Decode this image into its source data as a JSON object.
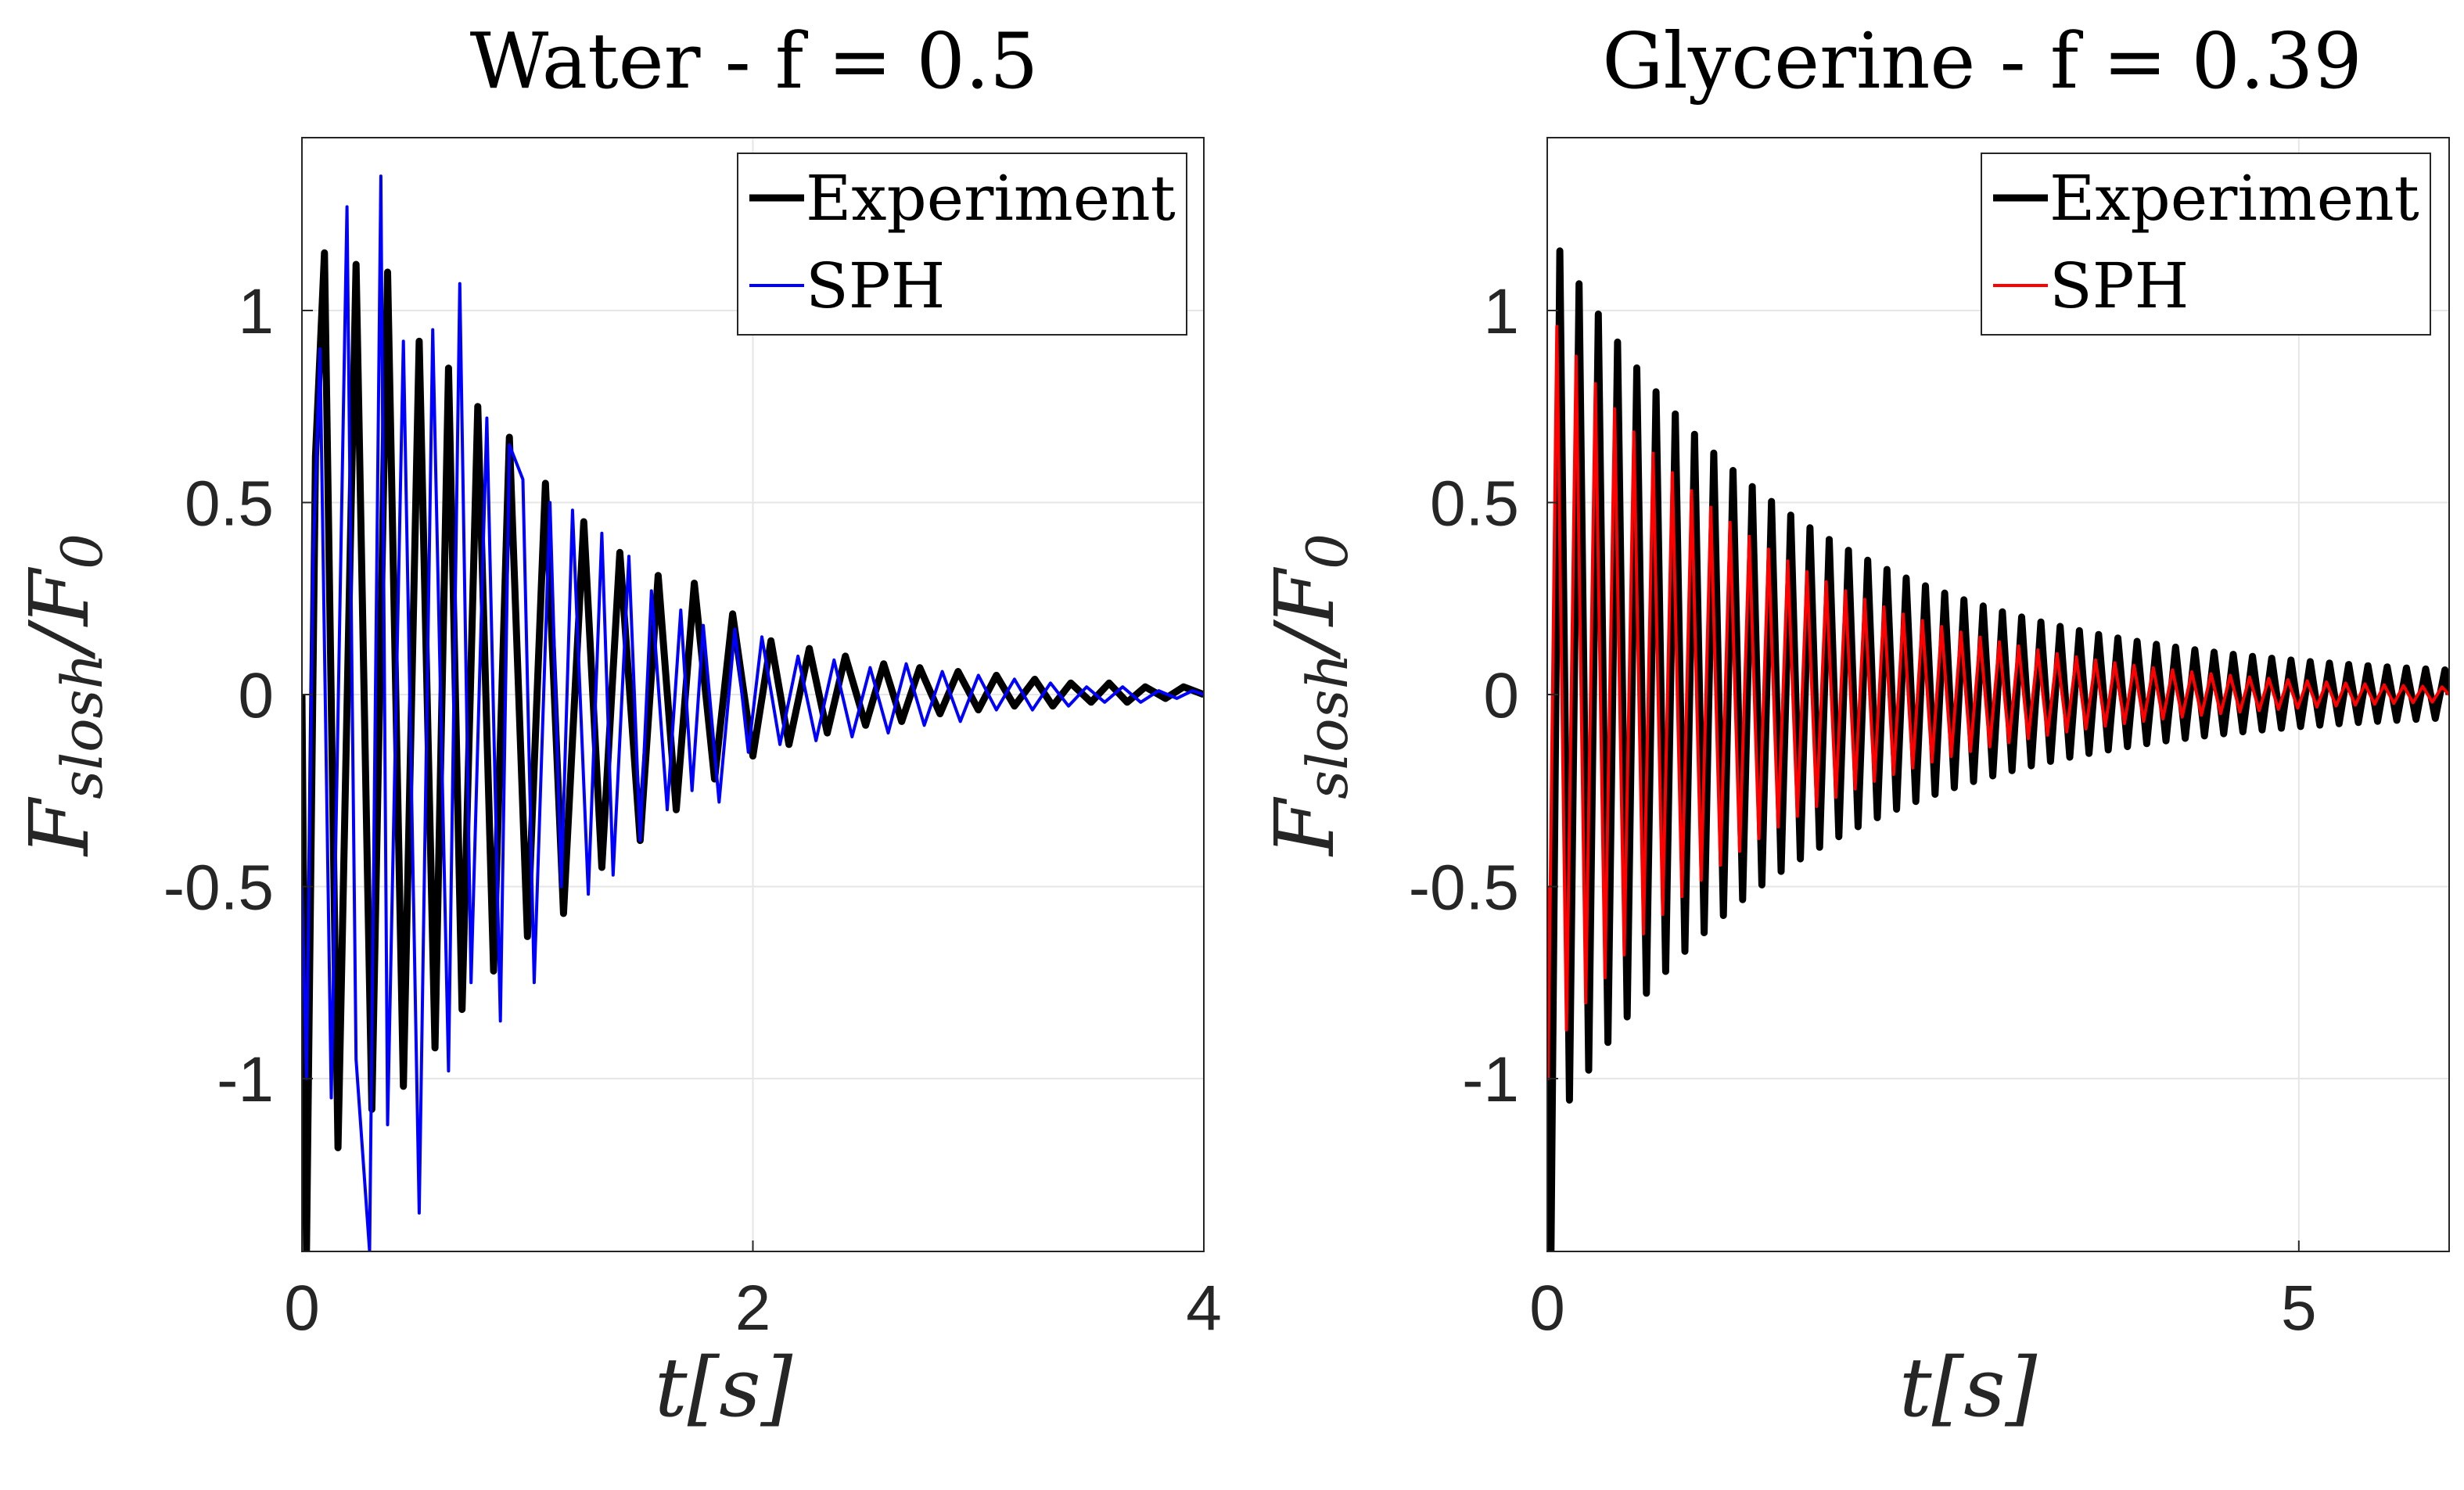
{
  "chart_data": [
    {
      "type": "line",
      "title": "Water - f = 0.5",
      "xlabel": "t[s]",
      "ylabel": "F_slosh/F_0",
      "ylabel_main": "F",
      "ylabel_sub": "slosh",
      "ylabel_div": "/",
      "ylabel_main2": "F",
      "ylabel_sub2": "0",
      "xlim": [
        0,
        4
      ],
      "ylim": [
        -1.45,
        1.45
      ],
      "xticks": [
        0,
        2,
        4
      ],
      "xtick_labels": [
        "0",
        "2",
        "4"
      ],
      "yticks": [
        -1,
        -0.5,
        0,
        0.5,
        1
      ],
      "ytick_labels": [
        "-1",
        "-0.5",
        "0",
        "0.5",
        "1"
      ],
      "grid": true,
      "legend_position": "top-right",
      "series": [
        {
          "name": "Experiment",
          "color": "#000000",
          "style": "thick",
          "x": [
            0.0,
            0.02,
            0.06,
            0.1,
            0.16,
            0.24,
            0.31,
            0.38,
            0.45,
            0.52,
            0.59,
            0.65,
            0.71,
            0.78,
            0.85,
            0.92,
            1.0,
            1.08,
            1.16,
            1.25,
            1.33,
            1.41,
            1.5,
            1.58,
            1.66,
            1.74,
            1.83,
            1.91,
            2.0,
            2.08,
            2.16,
            2.25,
            2.33,
            2.41,
            2.5,
            2.58,
            2.66,
            2.74,
            2.83,
            2.91,
            3.0,
            3.08,
            3.16,
            3.25,
            3.33,
            3.41,
            3.5,
            3.58,
            3.66,
            3.74,
            3.83,
            3.91,
            4.0
          ],
          "y": [
            0.0,
            -1.45,
            0.62,
            1.15,
            -1.18,
            1.12,
            -1.08,
            1.1,
            -1.02,
            0.92,
            -0.92,
            0.85,
            -0.82,
            0.75,
            -0.72,
            0.67,
            -0.63,
            0.55,
            -0.57,
            0.45,
            -0.45,
            0.37,
            -0.38,
            0.31,
            -0.3,
            0.29,
            -0.22,
            0.21,
            -0.16,
            0.14,
            -0.13,
            0.12,
            -0.1,
            0.1,
            -0.08,
            0.08,
            -0.07,
            0.07,
            -0.05,
            0.06,
            -0.04,
            0.05,
            -0.03,
            0.04,
            -0.03,
            0.03,
            -0.02,
            0.03,
            -0.02,
            0.02,
            -0.01,
            0.02,
            0.0
          ]
        },
        {
          "name": "SPH",
          "color": "#0000ff",
          "style": "thin",
          "x": [
            0.0,
            0.02,
            0.05,
            0.08,
            0.13,
            0.2,
            0.24,
            0.3,
            0.35,
            0.38,
            0.45,
            0.52,
            0.58,
            0.65,
            0.7,
            0.75,
            0.82,
            0.88,
            0.92,
            0.98,
            1.03,
            1.1,
            1.15,
            1.2,
            1.27,
            1.33,
            1.38,
            1.45,
            1.5,
            1.55,
            1.62,
            1.68,
            1.73,
            1.78,
            1.85,
            1.92,
            1.98,
            2.04,
            2.12,
            2.2,
            2.28,
            2.36,
            2.44,
            2.52,
            2.6,
            2.68,
            2.76,
            2.84,
            2.92,
            3.0,
            3.08,
            3.16,
            3.24,
            3.32,
            3.4,
            3.48,
            3.56,
            3.64,
            3.72,
            3.8,
            3.88,
            3.95,
            4.0
          ],
          "y": [
            -0.5,
            -1.0,
            0.35,
            0.9,
            -1.05,
            1.27,
            -0.95,
            -1.45,
            1.35,
            -1.12,
            0.92,
            -1.35,
            0.95,
            -0.98,
            1.07,
            -0.75,
            0.72,
            -0.85,
            0.65,
            0.56,
            -0.75,
            0.5,
            -0.5,
            0.48,
            -0.52,
            0.42,
            -0.47,
            0.36,
            -0.38,
            0.27,
            -0.3,
            0.22,
            -0.25,
            0.18,
            -0.28,
            0.17,
            -0.15,
            0.15,
            -0.13,
            0.1,
            -0.12,
            0.09,
            -0.11,
            0.07,
            -0.1,
            0.08,
            -0.08,
            0.06,
            -0.07,
            0.05,
            -0.04,
            0.04,
            -0.04,
            0.03,
            -0.03,
            0.02,
            -0.02,
            0.02,
            -0.02,
            0.01,
            -0.01,
            0.01,
            0.0
          ]
        }
      ]
    },
    {
      "type": "line",
      "title": "Glycerine - f = 0.39",
      "xlabel": "t[s]",
      "ylabel": "F_slosh/F_0",
      "ylabel_main": "F",
      "ylabel_sub": "slosh",
      "ylabel_div": "/",
      "ylabel_main2": "F",
      "ylabel_sub2": "0",
      "xlim": [
        0,
        6
      ],
      "ylim": [
        -1.45,
        1.45
      ],
      "xticks": [
        0,
        5
      ],
      "xtick_labels": [
        "0",
        "5"
      ],
      "yticks": [
        -1,
        -0.5,
        0,
        0.5,
        1
      ],
      "ytick_labels": [
        "-1",
        "-0.5",
        "0",
        "0.5",
        "1"
      ],
      "grid": true,
      "legend_position": "top-right",
      "series": [
        {
          "name": "Experiment",
          "color": "#000000",
          "style": "thick",
          "osc": {
            "start": 0.02,
            "period": 0.128,
            "amp0": 1.18,
            "decay": 0.62,
            "tail_amp": 0.035,
            "first_neg": -1.45
          }
        },
        {
          "name": "SPH",
          "color": "#ff0000",
          "style": "thin",
          "osc": {
            "start": 0.0,
            "period": 0.128,
            "amp0": 1.0,
            "decay": 0.66,
            "tail_amp": 0.0,
            "first_neg": -1.0
          }
        }
      ]
    }
  ]
}
